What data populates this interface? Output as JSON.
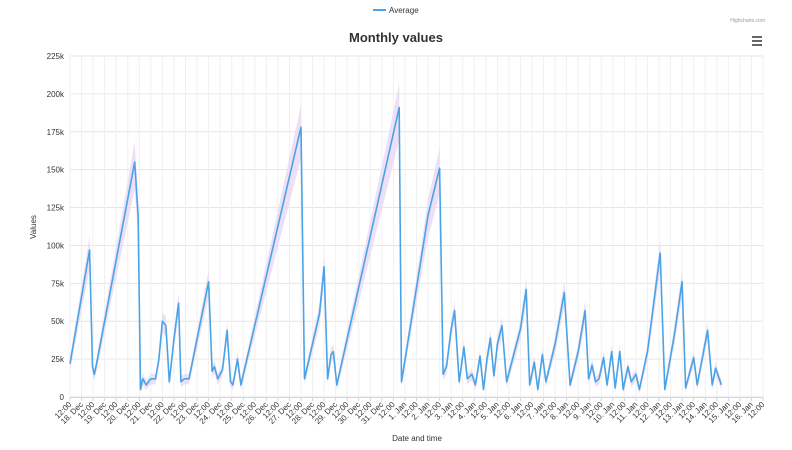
{
  "chart_data": {
    "type": "line",
    "title": "Monthly values",
    "xlabel": "Date and time",
    "ylabel": "Values",
    "ylim": [
      0,
      225000
    ],
    "yticks": [
      "0",
      "25k",
      "50k",
      "75k",
      "100k",
      "125k",
      "150k",
      "175k",
      "200k",
      "225k"
    ],
    "ytick_values": [
      0,
      25000,
      50000,
      75000,
      100000,
      125000,
      150000,
      175000,
      200000,
      225000
    ],
    "xticks": [
      "12:00",
      "18. Dec",
      "12:00",
      "19. Dec",
      "12:00",
      "20. Dec",
      "12:00",
      "21. Dec",
      "12:00",
      "22. Dec",
      "12:00",
      "23. Dec",
      "12:00",
      "24. Dec",
      "12:00",
      "25. Dec",
      "12:00",
      "26. Dec",
      "12:00",
      "27. Dec",
      "12:00",
      "28. Dec",
      "12:00",
      "29. Dec",
      "12:00",
      "30. Dec",
      "12:00",
      "31. Dec",
      "12:00",
      "1. Jan",
      "12:00",
      "2. Jan",
      "12:00",
      "3. Jan",
      "12:00",
      "4. Jan",
      "12:00",
      "5. Jan",
      "12:00",
      "6. Jan",
      "12:00",
      "7. Jan",
      "12:00",
      "8. Jan",
      "12:00",
      "9. Jan",
      "12:00",
      "10. Jan",
      "12:00",
      "11. Jan",
      "12:00",
      "12. Jan",
      "12:00",
      "13. Jan",
      "12:00",
      "14. Jan",
      "12:00",
      "15. Jan",
      "12:00",
      "16. Jan",
      "12:00"
    ],
    "xrange": [
      0,
      60
    ],
    "grid": true,
    "legend_position": "top-center",
    "series": [
      {
        "name": "Average",
        "color": "#4aa3e6",
        "band_color": "#e8d8f2",
        "points": [
          [
            0.0,
            22000
          ],
          [
            1.7,
            97000
          ],
          [
            1.95,
            20000
          ],
          [
            2.1,
            15000
          ],
          [
            2.3,
            22000
          ],
          [
            5.6,
            155000
          ],
          [
            5.9,
            120000
          ],
          [
            6.1,
            5000
          ],
          [
            6.3,
            12000
          ],
          [
            6.6,
            8000
          ],
          [
            7.0,
            12000
          ],
          [
            7.4,
            12000
          ],
          [
            7.7,
            25000
          ],
          [
            8.0,
            50000
          ],
          [
            8.3,
            47000
          ],
          [
            8.6,
            10000
          ],
          [
            9.0,
            38000
          ],
          [
            9.4,
            62000
          ],
          [
            9.6,
            10000
          ],
          [
            9.9,
            12000
          ],
          [
            10.3,
            12000
          ],
          [
            12.0,
            76000
          ],
          [
            12.3,
            17000
          ],
          [
            12.5,
            20000
          ],
          [
            12.8,
            12000
          ],
          [
            13.2,
            18000
          ],
          [
            13.6,
            44000
          ],
          [
            13.9,
            10000
          ],
          [
            14.1,
            8000
          ],
          [
            14.5,
            25000
          ],
          [
            14.8,
            8000
          ],
          [
            20.0,
            178000
          ],
          [
            20.3,
            12000
          ],
          [
            21.6,
            55000
          ],
          [
            22.0,
            86000
          ],
          [
            22.3,
            12000
          ],
          [
            22.6,
            28000
          ],
          [
            22.8,
            30000
          ],
          [
            23.1,
            8000
          ],
          [
            28.5,
            191000
          ],
          [
            28.7,
            10000
          ],
          [
            31.0,
            120000
          ],
          [
            32.0,
            151000
          ],
          [
            32.3,
            15000
          ],
          [
            32.6,
            20000
          ],
          [
            33.0,
            45000
          ],
          [
            33.3,
            57000
          ],
          [
            33.7,
            10000
          ],
          [
            34.1,
            33000
          ],
          [
            34.4,
            12000
          ],
          [
            34.8,
            15000
          ],
          [
            35.1,
            8000
          ],
          [
            35.5,
            27000
          ],
          [
            35.8,
            5000
          ],
          [
            36.1,
            25000
          ],
          [
            36.4,
            39000
          ],
          [
            36.7,
            14000
          ],
          [
            37.0,
            35000
          ],
          [
            37.4,
            47000
          ],
          [
            37.8,
            10000
          ],
          [
            39.0,
            45000
          ],
          [
            39.5,
            71000
          ],
          [
            39.8,
            8000
          ],
          [
            40.2,
            23000
          ],
          [
            40.5,
            5000
          ],
          [
            40.9,
            28000
          ],
          [
            41.2,
            10000
          ],
          [
            42.0,
            35000
          ],
          [
            42.8,
            69000
          ],
          [
            43.3,
            8000
          ],
          [
            44.0,
            30000
          ],
          [
            44.6,
            57000
          ],
          [
            44.9,
            12000
          ],
          [
            45.2,
            21000
          ],
          [
            45.5,
            10000
          ],
          [
            45.8,
            12000
          ],
          [
            46.2,
            26000
          ],
          [
            46.5,
            8000
          ],
          [
            46.9,
            30000
          ],
          [
            47.2,
            6000
          ],
          [
            47.6,
            30000
          ],
          [
            47.9,
            5000
          ],
          [
            48.3,
            20000
          ],
          [
            48.6,
            10000
          ],
          [
            49.0,
            15000
          ],
          [
            49.3,
            5000
          ],
          [
            50.0,
            30000
          ],
          [
            51.1,
            95000
          ],
          [
            51.5,
            5000
          ],
          [
            52.3,
            40000
          ],
          [
            53.0,
            76000
          ],
          [
            53.3,
            6000
          ],
          [
            54.0,
            26000
          ],
          [
            54.3,
            8000
          ],
          [
            55.2,
            44000
          ],
          [
            55.6,
            8000
          ],
          [
            55.9,
            19000
          ],
          [
            56.4,
            8000
          ]
        ]
      }
    ]
  },
  "menu_icon": "hamburger-icon",
  "credits": "Highcharts.com"
}
